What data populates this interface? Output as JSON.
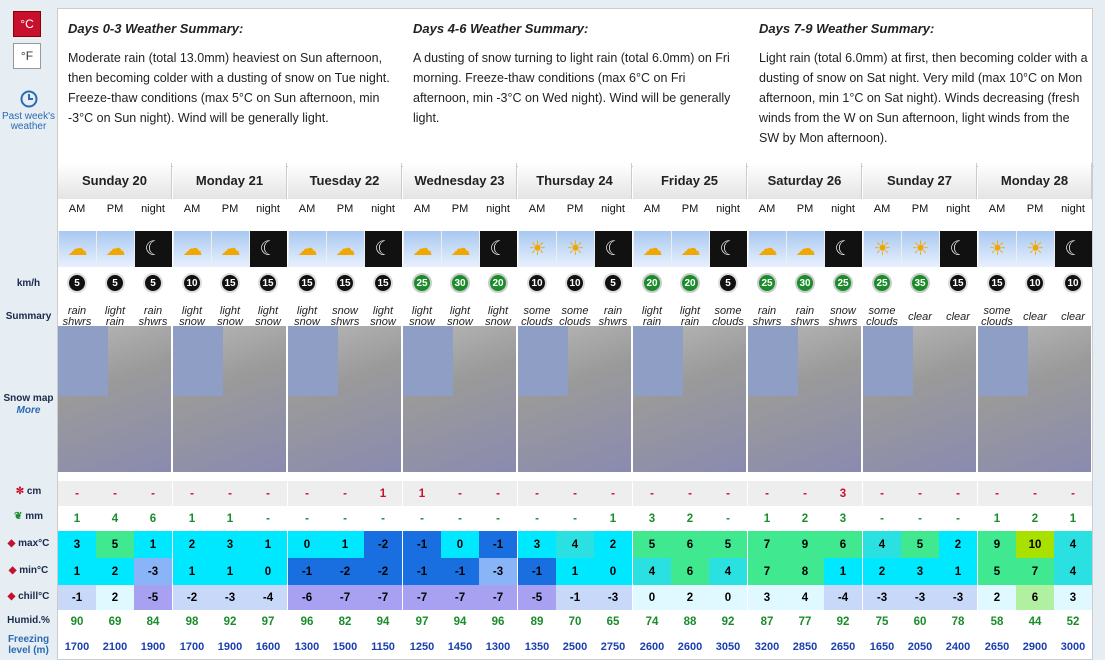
{
  "units": {
    "celsius": "°C",
    "fahrenheit": "°F"
  },
  "past": {
    "label": "Past week's weather"
  },
  "row_labels": {
    "wind": "km/h",
    "summary": "Summary",
    "snowmap": "Snow map",
    "more": "More",
    "snow": "cm",
    "rain": "mm",
    "max": "max°C",
    "min": "min°C",
    "chill": "chill°C",
    "humid": "Humid.%",
    "freezing": "Freezing level (m)"
  },
  "summaries": [
    {
      "title": "Days 0-3 Weather Summary:",
      "text": "Moderate rain (total 13.0mm) heaviest on Sun afternoon, then becoming colder with a dusting of snow on Tue night. Freeze-thaw conditions (max 5°C on Sun afternoon, min -3°C on Sun night). Wind will be generally light."
    },
    {
      "title": "Days 4-6 Weather Summary:",
      "text": "A dusting of snow turning to light rain (total 6.0mm) on Fri morning. Freeze-thaw conditions (max 6°C on Fri afternoon, min -3°C on Wed night). Wind will be generally light."
    },
    {
      "title": "Days 7-9 Weather Summary:",
      "text": "Light rain (total 6.0mm) at first, then becoming colder with a dusting of snow on Sat night. Very mild (max 10°C on Mon afternoon, min 1°C on Sat night). Winds decreasing (fresh winds from the W on Sun afternoon, light winds from the SW by Mon afternoon)."
    }
  ],
  "days": [
    "Sunday 20",
    "Monday 21",
    "Tuesday 22",
    "Wednesday 23",
    "Thursday 24",
    "Friday 25",
    "Saturday 26",
    "Sunday 27",
    "Monday 28"
  ],
  "periods": [
    "AM",
    "PM",
    "night"
  ],
  "wind": [
    5,
    5,
    5,
    10,
    15,
    15,
    15,
    15,
    15,
    25,
    30,
    20,
    10,
    10,
    5,
    20,
    20,
    5,
    25,
    30,
    25,
    25,
    35,
    15,
    15,
    10,
    10
  ],
  "summary": [
    "rain shwrs",
    "light rain",
    "rain shwrs",
    "light snow",
    "light snow",
    "light snow",
    "light snow",
    "snow shwrs",
    "light snow",
    "light snow",
    "light snow",
    "light snow",
    "some clouds",
    "some clouds",
    "rain shwrs",
    "light rain",
    "light rain",
    "some clouds",
    "rain shwrs",
    "rain shwrs",
    "snow shwrs",
    "some clouds",
    "clear",
    "clear",
    "some clouds",
    "clear",
    "clear"
  ],
  "snow": [
    "-",
    "-",
    "-",
    "-",
    "-",
    "-",
    "-",
    "-",
    "1",
    "1",
    "-",
    "-",
    "-",
    "-",
    "-",
    "-",
    "-",
    "-",
    "-",
    "-",
    "3",
    "-",
    "-",
    "-",
    "-",
    "-",
    "-"
  ],
  "rain": [
    "1",
    "4",
    "6",
    "1",
    "1",
    "-",
    "-",
    "-",
    "-",
    "-",
    "-",
    "-",
    "-",
    "-",
    "1",
    "3",
    "2",
    "-",
    "1",
    "2",
    "3",
    "-",
    "-",
    "-",
    "1",
    "2",
    "1"
  ],
  "max": [
    3,
    5,
    1,
    2,
    3,
    1,
    0,
    1,
    -2,
    -1,
    0,
    -1,
    3,
    4,
    2,
    5,
    6,
    5,
    7,
    9,
    6,
    4,
    5,
    2,
    9,
    10,
    4
  ],
  "min": [
    1,
    2,
    -3,
    1,
    1,
    0,
    -1,
    -2,
    -2,
    -1,
    -1,
    -3,
    -1,
    1,
    0,
    4,
    6,
    4,
    7,
    8,
    1,
    2,
    3,
    1,
    5,
    7,
    4
  ],
  "chill": [
    -1,
    2,
    -5,
    -2,
    -3,
    -4,
    -6,
    -7,
    -7,
    -7,
    -7,
    -7,
    -5,
    -1,
    -3,
    0,
    2,
    0,
    3,
    4,
    -4,
    -3,
    -3,
    -3,
    2,
    6,
    3
  ],
  "humid": [
    90,
    69,
    84,
    98,
    92,
    97,
    96,
    82,
    94,
    97,
    94,
    96,
    89,
    70,
    65,
    74,
    88,
    92,
    87,
    77,
    92,
    75,
    60,
    78,
    58,
    44,
    52
  ],
  "freezing": [
    1700,
    2100,
    1900,
    1700,
    1900,
    1600,
    1300,
    1500,
    1150,
    1250,
    1450,
    1300,
    1350,
    2500,
    2750,
    2600,
    2600,
    3050,
    3200,
    2850,
    2650,
    1650,
    2050,
    2400,
    2650,
    2900,
    3000
  ]
}
